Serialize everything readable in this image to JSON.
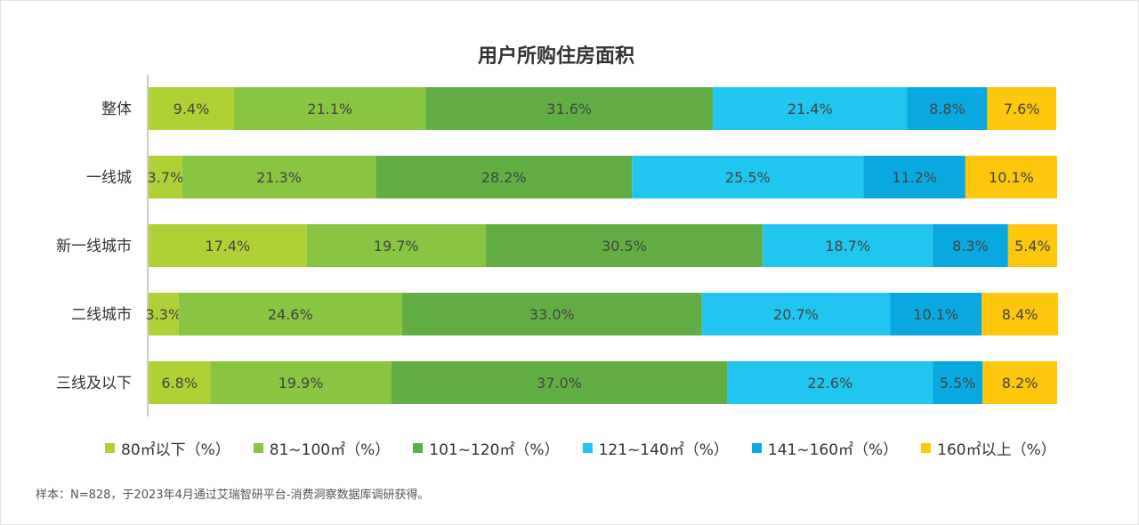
{
  "chart_data": {
    "type": "bar",
    "orientation": "horizontal",
    "stacked": true,
    "title": "用户所购住房面积",
    "categories": [
      "整体",
      "一线城",
      "新一线城市",
      "二线城市",
      "三线及以下"
    ],
    "series": [
      {
        "name": "80㎡以下（%）",
        "color": "#b0d136",
        "values": [
          9.4,
          3.7,
          17.4,
          3.3,
          6.8
        ]
      },
      {
        "name": "81~100㎡（%）",
        "color": "#88c540",
        "values": [
          21.1,
          21.3,
          19.7,
          24.6,
          19.9
        ]
      },
      {
        "name": "101~120㎡（%）",
        "color": "#62ae44",
        "values": [
          31.6,
          28.2,
          30.5,
          33.0,
          37.0
        ]
      },
      {
        "name": "121~140㎡（%）",
        "color": "#20c6f0",
        "values": [
          21.4,
          25.5,
          18.7,
          20.7,
          22.6
        ]
      },
      {
        "name": "141~160㎡（%）",
        "color": "#0aa8e0",
        "values": [
          8.8,
          11.2,
          8.3,
          10.1,
          5.5
        ]
      },
      {
        "name": "160㎡以上（%）",
        "color": "#fcc70c",
        "values": [
          7.6,
          10.1,
          5.4,
          8.4,
          8.2
        ]
      }
    ],
    "value_format": "%",
    "legend_position": "bottom",
    "grid": false
  },
  "source_note": "样本：N=828，于2023年4月通过艾瑞智研平台-消费洞察数据库调研获得。"
}
